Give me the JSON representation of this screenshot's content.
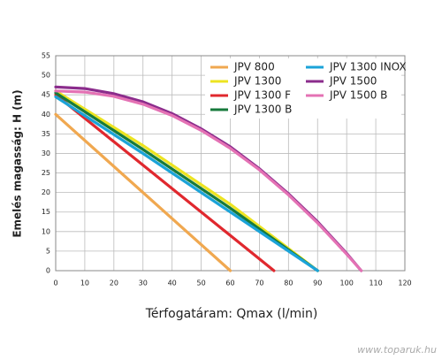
{
  "chart_data": {
    "type": "line",
    "xlabel": "Térfogatáram: Qmax (l/min)",
    "ylabel": "Emelés magasság: H (m)",
    "watermark": "www.toparuk.hu",
    "xlim": [
      0,
      120
    ],
    "xticks": [
      0,
      10,
      20,
      30,
      40,
      50,
      60,
      70,
      80,
      90,
      100,
      110,
      120
    ],
    "ylim": [
      0,
      55
    ],
    "yticks": [
      0,
      5,
      10,
      15,
      20,
      25,
      30,
      35,
      40,
      45,
      50,
      55
    ],
    "grid": true,
    "legend": "upper right",
    "series": [
      {
        "name": "JPV 800",
        "color": "#f0a850",
        "x": [
          0,
          60
        ],
        "values": [
          40,
          0
        ]
      },
      {
        "name": "JPV 1300",
        "color": "#ede421",
        "x": [
          0,
          30,
          60,
          90
        ],
        "values": [
          46,
          32,
          17,
          0
        ]
      },
      {
        "name": "JPV 1300 F",
        "color": "#e0282e",
        "x": [
          0,
          75
        ],
        "values": [
          45,
          0
        ]
      },
      {
        "name": "JPV 1300 B",
        "color": "#177a3c",
        "x": [
          0,
          30,
          60,
          90
        ],
        "values": [
          45.5,
          31,
          16,
          0
        ]
      },
      {
        "name": "JPV 1300 INOX",
        "color": "#1ba3d8",
        "x": [
          0,
          30,
          60,
          90
        ],
        "values": [
          44.5,
          30,
          15,
          0
        ]
      },
      {
        "name": "JPV 1500",
        "color": "#8b2c8c",
        "x": [
          0,
          10,
          20,
          30,
          40,
          50,
          60,
          70,
          80,
          90,
          100,
          105
        ],
        "values": [
          47,
          46.6,
          45.3,
          43.2,
          40.2,
          36.3,
          31.7,
          26.1,
          19.7,
          12.5,
          4.4,
          0
        ]
      },
      {
        "name": "JPV 1500 B",
        "color": "#e472b4",
        "x": [
          0,
          10,
          20,
          30,
          40,
          50,
          60,
          70,
          80,
          90,
          100,
          105
        ],
        "values": [
          46,
          45.7,
          44.6,
          42.6,
          39.7,
          35.9,
          31.3,
          25.8,
          19.4,
          12.2,
          4.2,
          0
        ]
      }
    ]
  }
}
